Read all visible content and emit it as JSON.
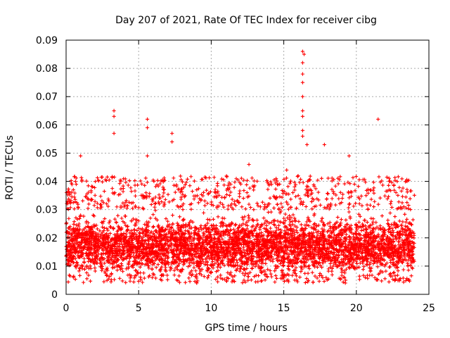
{
  "chart_data": {
    "type": "scatter",
    "title": "Day 207 of 2021, Rate Of TEC Index for receiver cibg",
    "xlabel": "GPS time / hours",
    "ylabel": "ROTI / TECUs",
    "xlim": [
      0,
      25
    ],
    "ylim": [
      0,
      0.09
    ],
    "x_ticks": [
      0,
      5,
      10,
      15,
      20,
      25
    ],
    "x_tick_labels": [
      "0",
      "5",
      "10",
      "15",
      "20",
      "25"
    ],
    "y_ticks": [
      0,
      0.01,
      0.02,
      0.03,
      0.04,
      0.05,
      0.06,
      0.07,
      0.08,
      0.09
    ],
    "y_tick_labels": [
      "0",
      "0.01",
      "0.02",
      "0.03",
      "0.04",
      "0.05",
      "0.06",
      "0.07",
      "0.08",
      "0.09"
    ],
    "grid": true,
    "marker": "+",
    "marker_color": "#ff0000",
    "series": [
      {
        "name": "ROTI",
        "x_range": [
          0,
          24
        ],
        "baseline_band": [
          0.007,
          0.03
        ],
        "typical_value": 0.017,
        "notable_points": [
          {
            "x": 3.3,
            "y": 0.065
          },
          {
            "x": 3.3,
            "y": 0.063
          },
          {
            "x": 3.3,
            "y": 0.057
          },
          {
            "x": 5.6,
            "y": 0.062
          },
          {
            "x": 5.6,
            "y": 0.059
          },
          {
            "x": 7.3,
            "y": 0.057
          },
          {
            "x": 7.3,
            "y": 0.054
          },
          {
            "x": 16.3,
            "y": 0.086
          },
          {
            "x": 16.4,
            "y": 0.085
          },
          {
            "x": 16.3,
            "y": 0.082
          },
          {
            "x": 16.3,
            "y": 0.078
          },
          {
            "x": 16.3,
            "y": 0.075
          },
          {
            "x": 16.3,
            "y": 0.07
          },
          {
            "x": 16.3,
            "y": 0.065
          },
          {
            "x": 16.3,
            "y": 0.063
          },
          {
            "x": 16.3,
            "y": 0.058
          },
          {
            "x": 16.3,
            "y": 0.056
          },
          {
            "x": 16.6,
            "y": 0.053
          },
          {
            "x": 17.8,
            "y": 0.053
          },
          {
            "x": 19.5,
            "y": 0.049
          },
          {
            "x": 21.5,
            "y": 0.062
          },
          {
            "x": 1.0,
            "y": 0.049
          },
          {
            "x": 5.6,
            "y": 0.049
          },
          {
            "x": 12.6,
            "y": 0.046
          },
          {
            "x": 15.2,
            "y": 0.044
          }
        ]
      }
    ]
  }
}
